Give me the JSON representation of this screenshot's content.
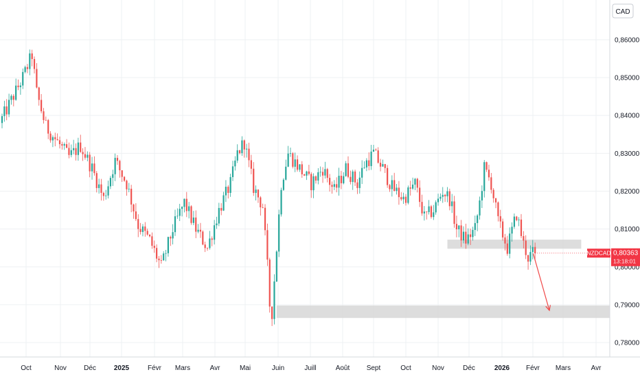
{
  "chart_data": {
    "type": "candlestick",
    "symbol": "NZDCAD",
    "currency": "CAD",
    "last_price": "0,80363",
    "countdown": "13:18:01",
    "ylim": [
      0.7762,
      0.8705
    ],
    "y_ticks": [
      "0,86000",
      "0,85000",
      "0,84000",
      "0,83000",
      "0,82000",
      "0,81000",
      "0,80000",
      "0,79000",
      "0,78000"
    ],
    "x_ticks": [
      "Oct",
      "Nov",
      "Déc",
      "2025",
      "Févr",
      "Mars",
      "Avr",
      "Mai",
      "Juin",
      "Juill",
      "Août",
      "Sept",
      "Oct",
      "Nov",
      "Déc",
      "2026",
      "Févr",
      "Mars",
      "Avr"
    ],
    "x_ticks_bold": [
      false,
      false,
      false,
      true,
      false,
      false,
      false,
      false,
      false,
      false,
      false,
      false,
      false,
      false,
      false,
      true,
      false,
      false,
      false
    ],
    "path_anchors": [
      [
        0,
        0.838
      ],
      [
        10,
        0.85
      ],
      [
        14,
        0.856
      ],
      [
        16,
        0.846
      ],
      [
        20,
        0.837
      ],
      [
        25,
        0.833
      ],
      [
        30,
        0.829
      ],
      [
        35,
        0.832
      ],
      [
        40,
        0.826
      ],
      [
        45,
        0.818
      ],
      [
        50,
        0.828
      ],
      [
        55,
        0.822
      ],
      [
        60,
        0.811
      ],
      [
        65,
        0.807
      ],
      [
        70,
        0.8
      ],
      [
        75,
        0.81
      ],
      [
        80,
        0.817
      ],
      [
        85,
        0.81
      ],
      [
        90,
        0.805
      ],
      [
        95,
        0.815
      ],
      [
        100,
        0.822
      ],
      [
        103,
        0.83
      ],
      [
        106,
        0.833
      ],
      [
        110,
        0.821
      ],
      [
        114,
        0.816
      ],
      [
        116,
        0.8
      ],
      [
        117,
        0.79
      ],
      [
        118,
        0.788
      ],
      [
        120,
        0.805
      ],
      [
        122,
        0.822
      ],
      [
        125,
        0.83
      ],
      [
        130,
        0.826
      ],
      [
        135,
        0.822
      ],
      [
        140,
        0.826
      ],
      [
        145,
        0.82
      ],
      [
        150,
        0.826
      ],
      [
        155,
        0.822
      ],
      [
        158,
        0.827
      ],
      [
        162,
        0.83
      ],
      [
        166,
        0.826
      ],
      [
        170,
        0.821
      ],
      [
        175,
        0.818
      ],
      [
        180,
        0.822
      ],
      [
        184,
        0.813
      ],
      [
        188,
        0.815
      ],
      [
        192,
        0.82
      ],
      [
        195,
        0.818
      ],
      [
        198,
        0.81
      ],
      [
        202,
        0.807
      ],
      [
        206,
        0.81
      ],
      [
        208,
        0.817
      ],
      [
        210,
        0.826
      ],
      [
        213,
        0.822
      ],
      [
        216,
        0.812
      ],
      [
        220,
        0.805
      ],
      [
        224,
        0.814
      ],
      [
        227,
        0.806
      ],
      [
        229,
        0.8025
      ],
      [
        231,
        0.8036
      ]
    ],
    "n_bars": 232,
    "zones": [
      {
        "from_bar": 193,
        "to_bar": 251,
        "low": 0.8048,
        "high": 0.8072
      },
      {
        "from_bar": 119,
        "to_bar": 289,
        "low": 0.7865,
        "high": 0.7898
      }
    ],
    "arrow": {
      "from_bar": 232,
      "from_value": 0.8035,
      "to_bar": 239,
      "to_value": 0.7885
    },
    "colors": {
      "up": "#26a69a",
      "down": "#ef5350",
      "zone": "#d9d9d9",
      "arrow": "#f04848",
      "price_tag": "#f23645"
    }
  }
}
